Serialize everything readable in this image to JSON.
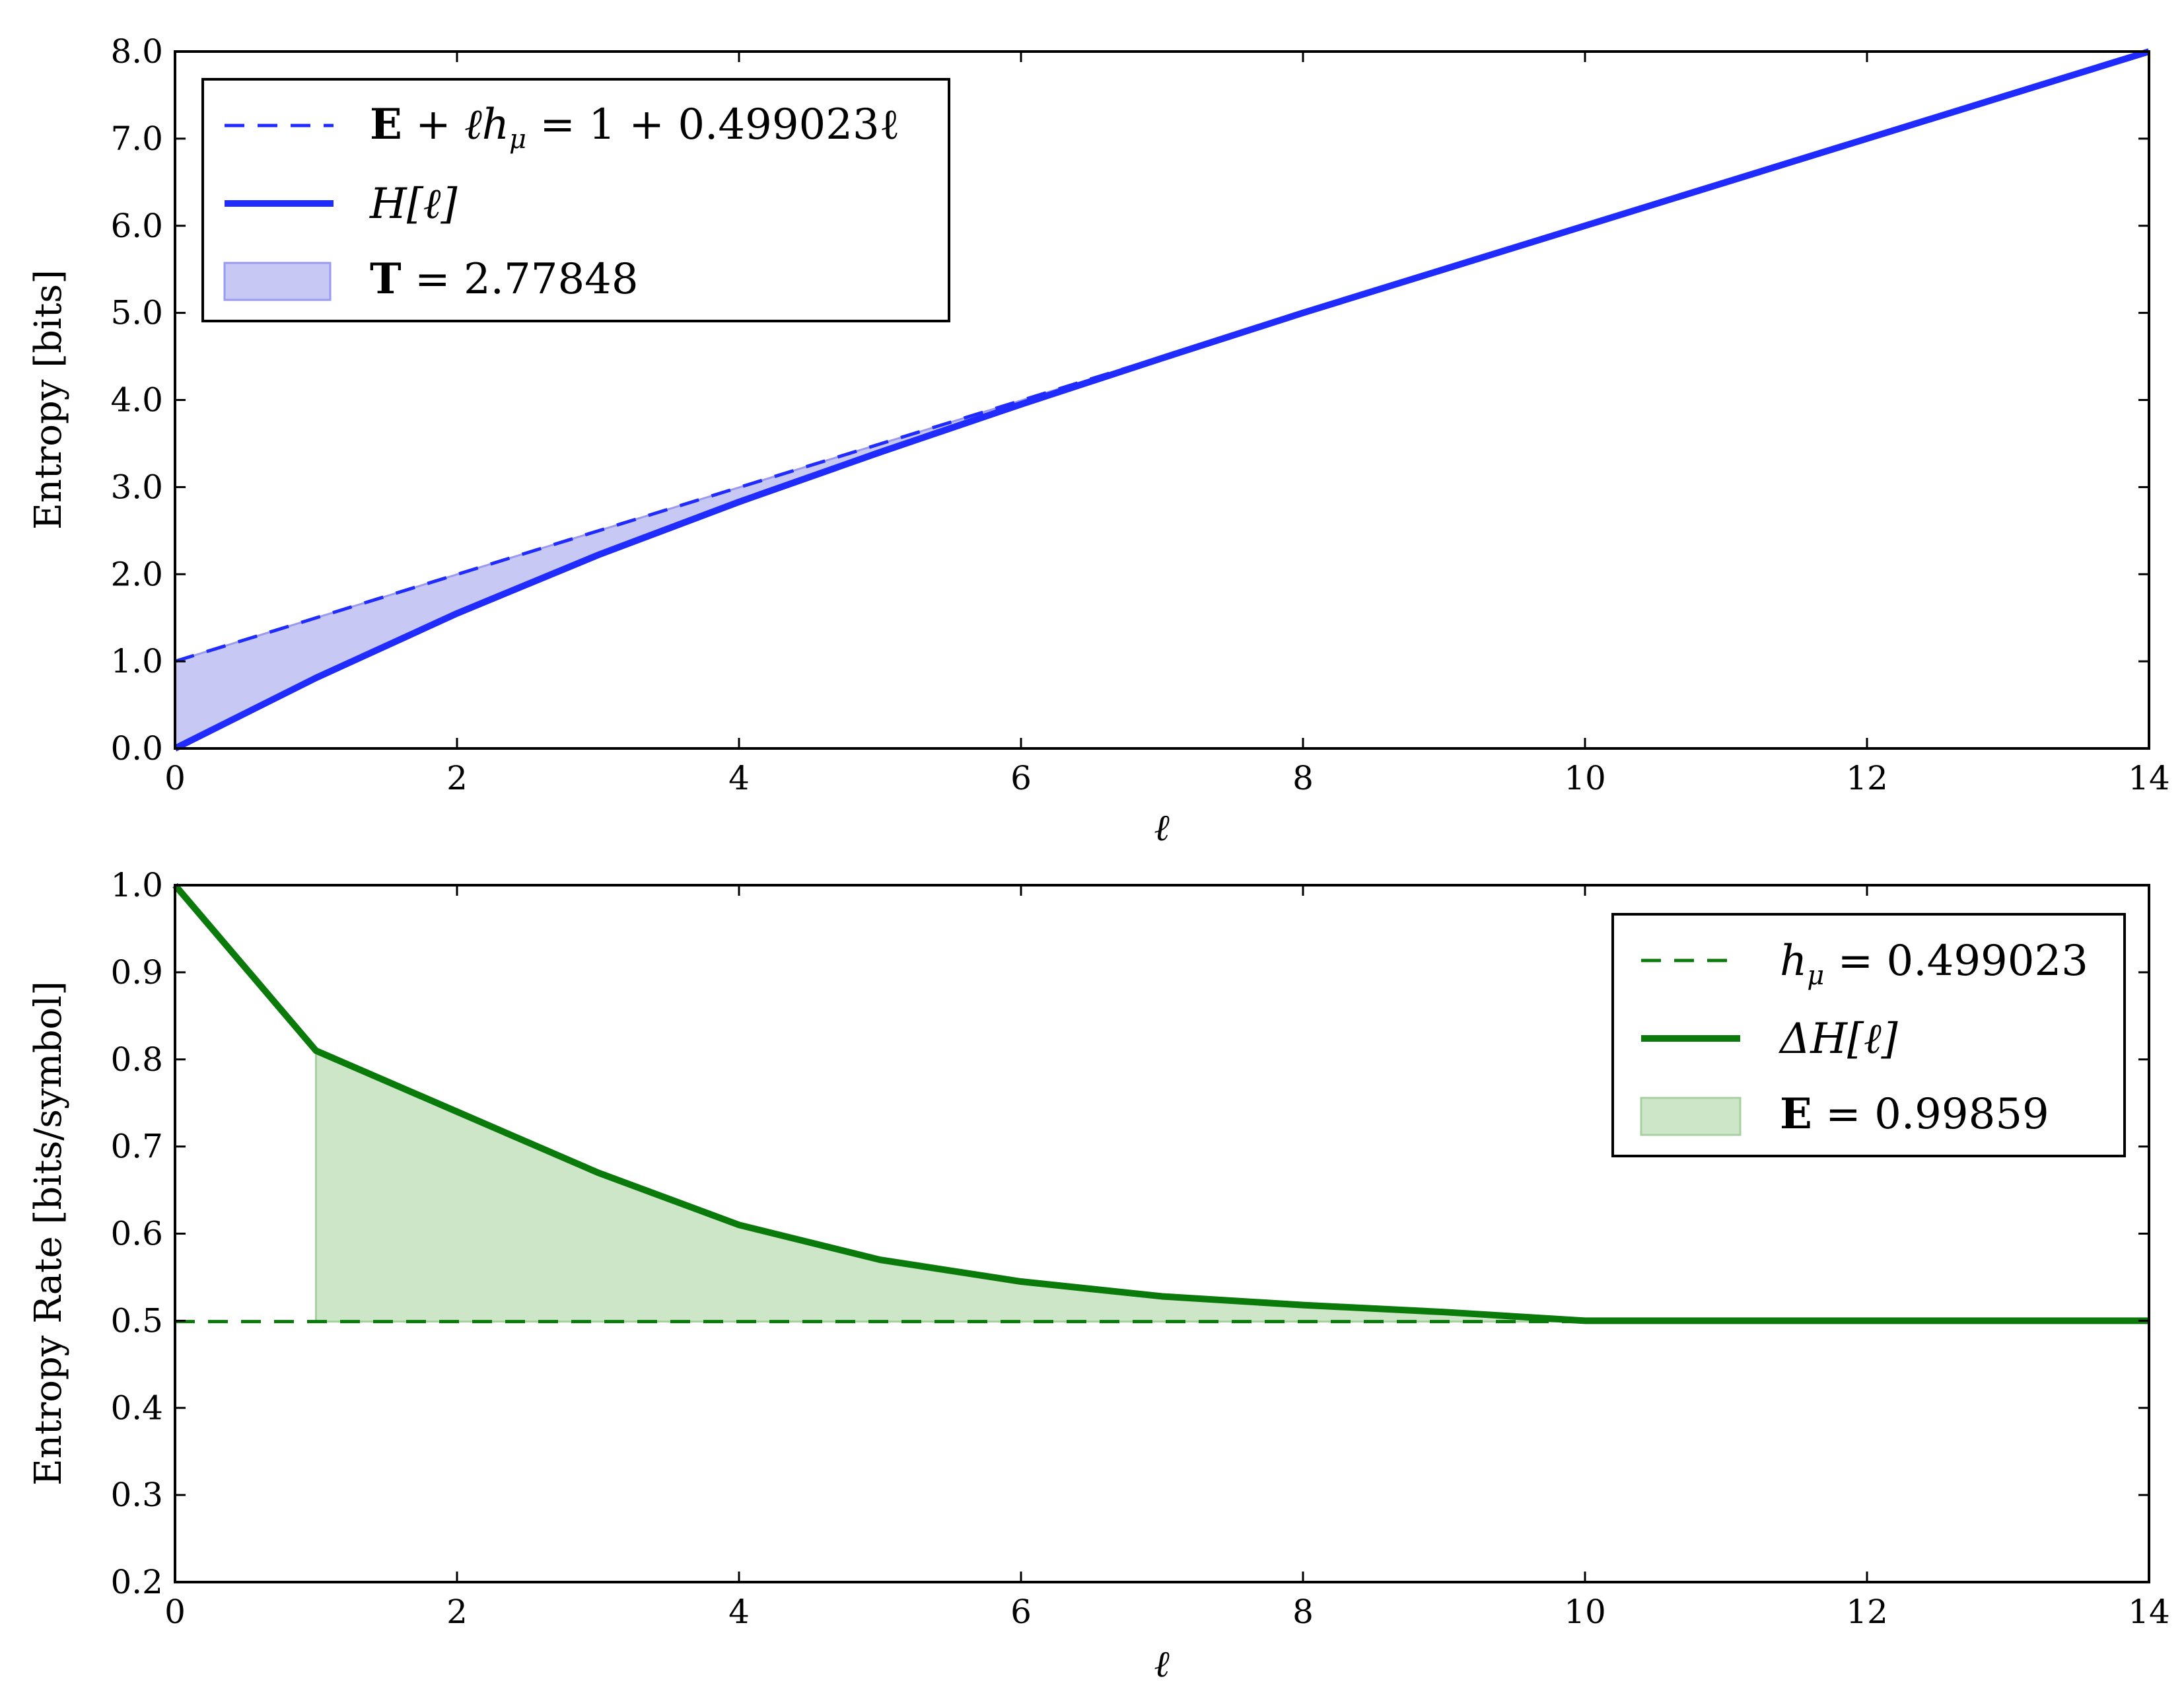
{
  "chart_data": [
    {
      "type": "line",
      "xlabel": "ℓ",
      "ylabel": "Entropy [bits]",
      "xlim": [
        0,
        14
      ],
      "ylim": [
        0.0,
        8.0
      ],
      "xticks": [
        0,
        2,
        4,
        6,
        8,
        10,
        12,
        14
      ],
      "xtick_labels": [
        "0",
        "2",
        "4",
        "6",
        "8",
        "10",
        "12",
        "14"
      ],
      "yticks": [
        0.0,
        1.0,
        2.0,
        3.0,
        4.0,
        5.0,
        6.0,
        7.0,
        8.0
      ],
      "ytick_labels": [
        "0.0",
        "1.0",
        "2.0",
        "3.0",
        "4.0",
        "5.0",
        "6.0",
        "7.0",
        "8.0"
      ],
      "legend_position": "top-left",
      "grid": false,
      "colors": {
        "line": "#1f2bff",
        "fill": "#c8c8f5",
        "fill_edge": "#9a9af0"
      },
      "series": [
        {
          "name": "E + ℓh_μ = 1 + 0.499023ℓ",
          "style": "dashed",
          "x": [
            0,
            14
          ],
          "y": [
            1.0,
            7.986
          ]
        },
        {
          "name": "H[ℓ]",
          "style": "solid",
          "x": [
            0,
            1,
            2,
            3,
            4,
            5,
            6,
            7,
            8,
            9,
            10,
            11,
            12,
            13,
            14
          ],
          "y": [
            0.0,
            0.81,
            1.55,
            2.22,
            2.83,
            3.4,
            3.95,
            4.48,
            5.0,
            5.5,
            6.0,
            6.5,
            7.0,
            7.5,
            8.0
          ]
        }
      ],
      "shaded_region": {
        "name": "T = 2.77848",
        "between": [
          "E + ℓh_μ = 1 + 0.499023ℓ",
          "H[ℓ]"
        ]
      }
    },
    {
      "type": "line",
      "xlabel": "ℓ",
      "ylabel": "Entropy Rate [bits/symbol]",
      "xlim": [
        0,
        14
      ],
      "ylim": [
        0.2,
        1.0
      ],
      "xticks": [
        0,
        2,
        4,
        6,
        8,
        10,
        12,
        14
      ],
      "xtick_labels": [
        "0",
        "2",
        "4",
        "6",
        "8",
        "10",
        "12",
        "14"
      ],
      "yticks": [
        0.2,
        0.3,
        0.4,
        0.5,
        0.6,
        0.7,
        0.8,
        0.9,
        1.0
      ],
      "ytick_labels": [
        "0.2",
        "0.3",
        "0.4",
        "0.5",
        "0.6",
        "0.7",
        "0.8",
        "0.9",
        "1.0"
      ],
      "legend_position": "top-right",
      "grid": false,
      "colors": {
        "line": "#0a7a0a",
        "fill": "#cde6c8",
        "fill_edge": "#a6d0a0"
      },
      "series": [
        {
          "name": "h_μ = 0.499023",
          "style": "dashed",
          "x": [
            0,
            14
          ],
          "y": [
            0.499023,
            0.499023
          ]
        },
        {
          "name": "ΔH[ℓ]",
          "style": "solid",
          "x": [
            0,
            1,
            2,
            3,
            4,
            5,
            6,
            7,
            8,
            9,
            10,
            11,
            12,
            13,
            14
          ],
          "y": [
            1.0,
            0.81,
            0.74,
            0.67,
            0.61,
            0.57,
            0.545,
            0.528,
            0.518,
            0.51,
            0.5,
            0.5,
            0.5,
            0.5,
            0.5
          ]
        }
      ],
      "shaded_region": {
        "name": "E = 0.99859",
        "between": [
          "ΔH[ℓ]",
          "h_μ = 0.499023"
        ],
        "x_from": 1
      }
    }
  ],
  "legend_top": {
    "dashed_label": {
      "lhs_bold": "E",
      "rest": " + ℓh",
      "sub": "μ",
      "rhs": " = 1 + 0.499023ℓ"
    },
    "solid_label": "H[ℓ]",
    "fill_label": {
      "bold": "T",
      "rest": " = 2.77848"
    }
  },
  "legend_bottom": {
    "dashed_label": {
      "base": "h",
      "sub": "μ",
      "rest": " = 0.499023"
    },
    "solid_label": "ΔH[ℓ]",
    "fill_label": {
      "bold": "E",
      "rest": " = 0.99859"
    }
  }
}
